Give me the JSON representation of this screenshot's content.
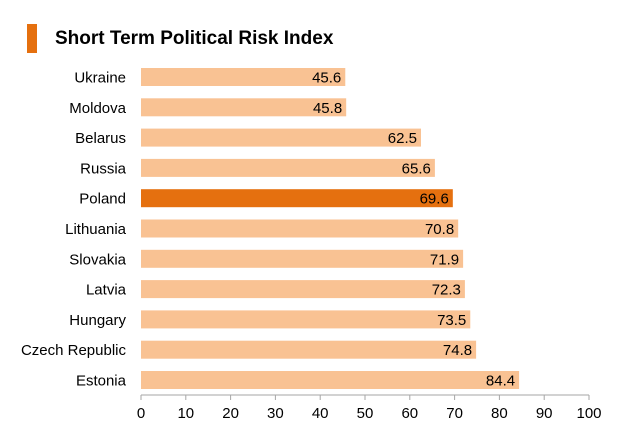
{
  "chart_data": {
    "type": "bar",
    "orientation": "horizontal",
    "title": "Short Term Political Risk Index",
    "categories": [
      "Ukraine",
      "Moldova",
      "Belarus",
      "Russia",
      "Poland",
      "Lithuania",
      "Slovakia",
      "Latvia",
      "Hungary",
      "Czech Republic",
      "Estonia"
    ],
    "values": [
      45.6,
      45.8,
      62.5,
      65.6,
      69.6,
      70.8,
      71.9,
      72.3,
      73.5,
      74.8,
      84.4
    ],
    "value_labels": [
      "45.6",
      "45.8",
      "62.5",
      "65.6",
      "69.6",
      "70.8",
      "71.9",
      "72.3",
      "73.5",
      "74.8",
      "84.4"
    ],
    "highlight_category": "Poland",
    "xlabel": "",
    "ylabel": "",
    "xlim": [
      0,
      100
    ],
    "xticks": [
      0,
      10,
      20,
      30,
      40,
      50,
      60,
      70,
      80,
      90,
      100
    ],
    "xtick_labels": [
      "0",
      "10",
      "20",
      "30",
      "40",
      "50",
      "60",
      "70",
      "80",
      "90",
      "100"
    ],
    "grid": false,
    "legend": "none",
    "colors": {
      "bar": "#f9c293",
      "highlight": "#e5700f",
      "accent": "#e5700f",
      "axis": "#a6a6a6",
      "text": "#000000"
    }
  }
}
